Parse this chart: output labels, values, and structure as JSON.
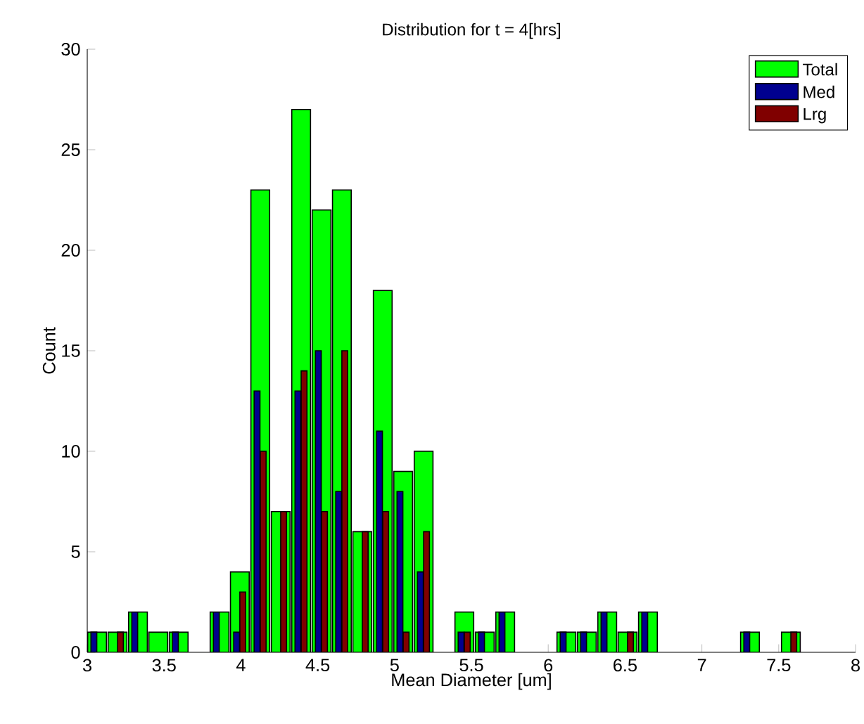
{
  "chart_data": {
    "type": "bar",
    "title": "Distribution for t = 4[hrs]",
    "xlabel": "Mean Diameter [um]",
    "ylabel": "Count",
    "x": [
      3.064,
      3.197,
      3.33,
      3.462,
      3.595,
      3.728,
      3.861,
      3.993,
      4.126,
      4.259,
      4.392,
      4.525,
      4.657,
      4.79,
      4.923,
      5.056,
      5.189,
      5.321,
      5.454,
      5.587,
      5.72,
      5.852,
      5.985,
      6.118,
      6.251,
      6.384,
      6.516,
      6.649,
      6.782,
      6.915,
      7.047,
      7.18,
      7.313,
      7.446,
      7.579
    ],
    "series": [
      {
        "name": "Total",
        "color": "#00ff00",
        "values": [
          1,
          1,
          2,
          1,
          1,
          0,
          2,
          4,
          23,
          7,
          27,
          22,
          23,
          6,
          18,
          9,
          10,
          0,
          2,
          1,
          2,
          0,
          0,
          1,
          1,
          2,
          1,
          2,
          0,
          0,
          0,
          0,
          1,
          0,
          1
        ]
      },
      {
        "name": "Med",
        "color": "#00008f",
        "values": [
          1,
          0,
          2,
          0,
          1,
          0,
          2,
          1,
          13,
          0,
          13,
          15,
          8,
          0,
          11,
          8,
          4,
          0,
          1,
          1,
          2,
          0,
          0,
          1,
          1,
          2,
          0,
          2,
          0,
          0,
          0,
          0,
          1,
          0,
          0
        ]
      },
      {
        "name": "Lrg",
        "color": "#800000",
        "values": [
          0,
          1,
          0,
          0,
          0,
          0,
          0,
          3,
          10,
          7,
          14,
          7,
          15,
          6,
          7,
          1,
          6,
          0,
          1,
          0,
          0,
          0,
          0,
          0,
          0,
          0,
          1,
          0,
          0,
          0,
          0,
          0,
          0,
          0,
          1
        ]
      }
    ],
    "xlim": [
      3,
      8
    ],
    "xticks": [
      3,
      3.5,
      4,
      4.5,
      5,
      5.5,
      6,
      6.5,
      7,
      7.5,
      8
    ],
    "ylim": [
      0,
      30
    ],
    "yticks": [
      0,
      5,
      10,
      15,
      20,
      25,
      30
    ],
    "legend": "top right"
  }
}
